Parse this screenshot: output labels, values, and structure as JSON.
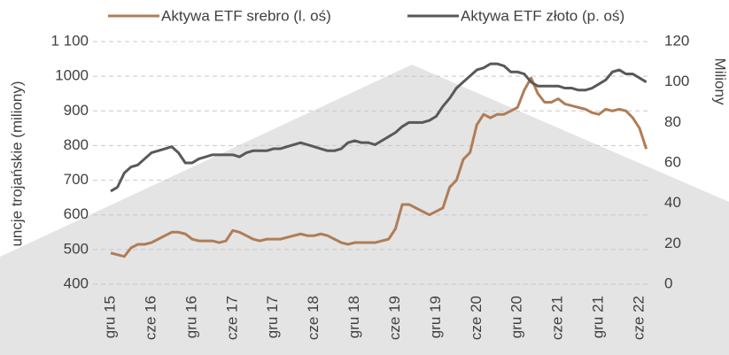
{
  "chart_data": {
    "type": "line",
    "categories": [
      "gru 15",
      null,
      null,
      null,
      null,
      null,
      "cze 16",
      null,
      null,
      null,
      null,
      null,
      "gru 16",
      null,
      null,
      null,
      null,
      null,
      "cze 17",
      null,
      null,
      null,
      null,
      null,
      "gru 17",
      null,
      null,
      null,
      null,
      null,
      "cze 18",
      null,
      null,
      null,
      null,
      null,
      "gru 18",
      null,
      null,
      null,
      null,
      null,
      "cze 19",
      null,
      null,
      null,
      null,
      null,
      "gru 19",
      null,
      null,
      null,
      null,
      null,
      "cze 20",
      null,
      null,
      null,
      null,
      null,
      "gru 20",
      null,
      null,
      null,
      null,
      null,
      "cze 21",
      null,
      null,
      null,
      null,
      null,
      "gru 21",
      null,
      null,
      null,
      null,
      null,
      "cze 22",
      null
    ],
    "series": [
      {
        "name": "Aktywa ETF srebro (l. oś)",
        "color": "#b07d56",
        "axis": "y",
        "values": [
          490,
          485,
          480,
          505,
          515,
          515,
          520,
          530,
          540,
          550,
          550,
          545,
          530,
          525,
          525,
          525,
          520,
          525,
          555,
          550,
          540,
          530,
          525,
          530,
          530,
          530,
          535,
          540,
          545,
          540,
          540,
          545,
          540,
          530,
          520,
          515,
          520,
          520,
          520,
          520,
          525,
          530,
          560,
          630,
          630,
          620,
          610,
          600,
          610,
          620,
          680,
          700,
          760,
          780,
          860,
          890,
          880,
          890,
          890,
          900,
          910,
          960,
          995,
          950,
          925,
          925,
          935,
          920,
          915,
          910,
          905,
          895,
          890,
          905,
          900,
          905,
          900,
          880,
          850,
          790
        ]
      },
      {
        "name": "Aktywa ETF złoto (p. oś)",
        "color": "#595959",
        "axis": "y2",
        "values": [
          46,
          48,
          55,
          58,
          59,
          62,
          65,
          66,
          67,
          68,
          65,
          60,
          60,
          62,
          63,
          64,
          64,
          64,
          64,
          63,
          65,
          66,
          66,
          66,
          67,
          67,
          68,
          69,
          70,
          69,
          68,
          67,
          66,
          66,
          67,
          70,
          71,
          70,
          70,
          69,
          71,
          73,
          75,
          78,
          80,
          80,
          80,
          81,
          83,
          88,
          92,
          97,
          100,
          103,
          106,
          107,
          109,
          109,
          108,
          105,
          105,
          104,
          100,
          98,
          98,
          98,
          98,
          97,
          97,
          96,
          96,
          97,
          99,
          101,
          105,
          106,
          104,
          104,
          102,
          100
        ]
      }
    ],
    "ylabel": "uncje trojańskie (miliony)",
    "y2label": "Miliony",
    "ylim": [
      400,
      1100
    ],
    "yticks": [
      400,
      500,
      600,
      700,
      800,
      900,
      1000,
      {
        "value": 1100,
        "label": "1 100"
      }
    ],
    "y2lim": [
      0,
      120
    ],
    "y2ticks": [
      0,
      20,
      40,
      60,
      80,
      100,
      120
    ],
    "grid": true,
    "legend": "top"
  }
}
